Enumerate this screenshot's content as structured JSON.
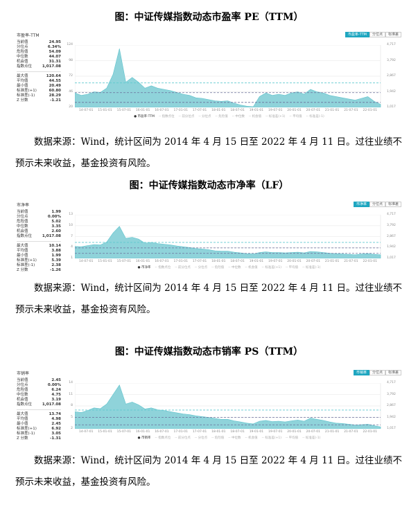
{
  "titles": [
    "图：中证传媒指数动态市盈率 PE（TTM）",
    "图：中证传媒指数动态市净率（LF）",
    "图：中证传媒指数动态市销率 PS（TTM）"
  ],
  "note": "数据来源：Wind，统计区间为 2014 年 4 月 15 日至 2022 年 4 月 11 日。过往业绩不预示未来收益，基金投资有风险。",
  "tabs": [
    "分位点",
    "标准差"
  ],
  "legend": [
    "指数点位",
    "前分位点",
    "分位点",
    "危险值",
    "中位数",
    "机会值",
    "标准差(+1)",
    "平均值",
    "标准差(-1)"
  ],
  "xticks": [
    "14-07-01",
    "15-01-01",
    "15-07-01",
    "16-01-01",
    "16-07-01",
    "17-01-01",
    "17-07-01",
    "18-01-01",
    "18-07-01",
    "19-01-01",
    "19-07-01",
    "20-01-01",
    "20-07-01",
    "21-01-01",
    "21-07-01",
    "22-01-01"
  ],
  "rticks": [
    "4,717",
    "3,792",
    "2,867",
    "1,942",
    "1,017"
  ],
  "stat_labels": [
    "当前值",
    "分位点",
    "危险值",
    "中位数",
    "机会值",
    "指数点位",
    "最大值",
    "平均值",
    "最小值",
    "标准差(+1)",
    "标准差(-1)",
    "Z 分数"
  ],
  "colors": {
    "area": "#8fd3da",
    "line": "#5ec3cc",
    "accent": "#1ea6c0",
    "danger": "#5fc9cf",
    "median": "#6a6f9a"
  },
  "chart_data": [
    {
      "type": "area",
      "name": "市盈率-TTM",
      "stats": [
        "24.95",
        "6.34%",
        "54.09",
        "44.07",
        "31.31",
        "1,017.08",
        "120.64",
        "44.55",
        "20.49",
        "60.80",
        "28.29",
        "-1.21"
      ],
      "ylim": [
        20,
        124
      ],
      "yticks": [
        "124",
        "98",
        "72",
        "46",
        "20"
      ],
      "lines": [
        60.8,
        44.55,
        28.29
      ],
      "start": "2014-04",
      "step_months": 2,
      "values": [
        44,
        40,
        42,
        46,
        45,
        52,
        75,
        118,
        62,
        70,
        62,
        52,
        56,
        52,
        50,
        48,
        45,
        42,
        40,
        36,
        35,
        33,
        31,
        30,
        31,
        27,
        24,
        22,
        21,
        38,
        44,
        40,
        42,
        40,
        44,
        46,
        42,
        50,
        46,
        44,
        40,
        38,
        36,
        34,
        32,
        35,
        38,
        30,
        25
      ]
    },
    {
      "type": "area",
      "name": "市净率",
      "stats": [
        "1.99",
        "0.00%",
        "5.02",
        "3.35",
        "2.60",
        "1,017.08",
        "10.14",
        "3.88",
        "1.99",
        "5.39",
        "2.38",
        "-1.26"
      ],
      "ylim": [
        1,
        13
      ],
      "yticks": [
        "13",
        "10",
        "7",
        "4",
        "1"
      ],
      "lines": [
        5.39,
        3.88,
        2.38
      ],
      "start": "2014-04",
      "step_months": 2,
      "values": [
        4.3,
        4.2,
        4.5,
        4.8,
        4.7,
        5.5,
        8,
        9.8,
        6.5,
        6.8,
        6.3,
        5.2,
        5.4,
        5.1,
        4.9,
        4.7,
        4.4,
        4.2,
        4.0,
        3.7,
        3.6,
        3.4,
        3.1,
        3.0,
        3.0,
        2.7,
        2.5,
        2.3,
        2.2,
        2.6,
        2.8,
        2.6,
        2.6,
        2.5,
        2.6,
        2.7,
        2.5,
        2.9,
        2.8,
        2.6,
        2.4,
        2.3,
        2.2,
        2.1,
        2.0,
        2.2,
        2.3,
        2.1,
        2.0
      ]
    },
    {
      "type": "area",
      "name": "市销率",
      "stats": [
        "2.45",
        "0.00%",
        "6.24",
        "4.75",
        "3.19",
        "1,017.08",
        "13.74",
        "4.98",
        "2.45",
        "6.92",
        "3.05",
        "-1.31"
      ],
      "ylim": [
        2,
        14
      ],
      "yticks": [
        "14",
        "11",
        "8",
        "5",
        "2"
      ],
      "lines": [
        6.92,
        4.98,
        3.05
      ],
      "start": "2014-04",
      "step_months": 2,
      "values": [
        6.5,
        6.3,
        6.8,
        7.5,
        7.3,
        8.5,
        11,
        13.5,
        8.5,
        9,
        8.3,
        7.2,
        7.5,
        7,
        6.8,
        6.5,
        6.2,
        5.9,
        5.7,
        5.4,
        5.2,
        5,
        4.7,
        4.5,
        4.5,
        4.1,
        3.8,
        3.5,
        3.3,
        4,
        4.2,
        3.9,
        4,
        3.8,
        4.1,
        4.3,
        4,
        4.8,
        4.5,
        4.2,
        3.8,
        3.5,
        3.4,
        3.2,
        3,
        3.1,
        3.2,
        2.8,
        2.5
      ]
    }
  ]
}
